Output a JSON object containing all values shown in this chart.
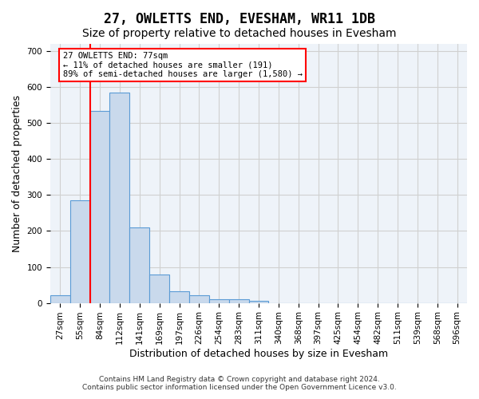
{
  "title": "27, OWLETTS END, EVESHAM, WR11 1DB",
  "subtitle": "Size of property relative to detached houses in Evesham",
  "xlabel": "Distribution of detached houses by size in Evesham",
  "ylabel": "Number of detached properties",
  "footer_line1": "Contains HM Land Registry data © Crown copyright and database right 2024.",
  "footer_line2": "Contains public sector information licensed under the Open Government Licence v3.0.",
  "bin_labels": [
    "27sqm",
    "55sqm",
    "84sqm",
    "112sqm",
    "141sqm",
    "169sqm",
    "197sqm",
    "226sqm",
    "254sqm",
    "283sqm",
    "311sqm",
    "340sqm",
    "368sqm",
    "397sqm",
    "425sqm",
    "454sqm",
    "482sqm",
    "511sqm",
    "539sqm",
    "568sqm",
    "596sqm"
  ],
  "bar_values": [
    22,
    285,
    533,
    585,
    210,
    78,
    33,
    22,
    10,
    10,
    5,
    0,
    0,
    0,
    0,
    0,
    0,
    0,
    0,
    0,
    0
  ],
  "bar_color": "#c9d9ec",
  "bar_edge_color": "#5b9bd5",
  "vline_pos": 1.5,
  "vline_color": "red",
  "annotation_text": "27 OWLETTS END: 77sqm\n← 11% of detached houses are smaller (191)\n89% of semi-detached houses are larger (1,580) →",
  "ylim": [
    0,
    720
  ],
  "yticks": [
    0,
    100,
    200,
    300,
    400,
    500,
    600,
    700
  ],
  "grid_color": "#d0d0d0",
  "background_color": "#eef3f9",
  "title_fontsize": 12,
  "subtitle_fontsize": 10,
  "axis_label_fontsize": 9,
  "tick_fontsize": 7.5
}
